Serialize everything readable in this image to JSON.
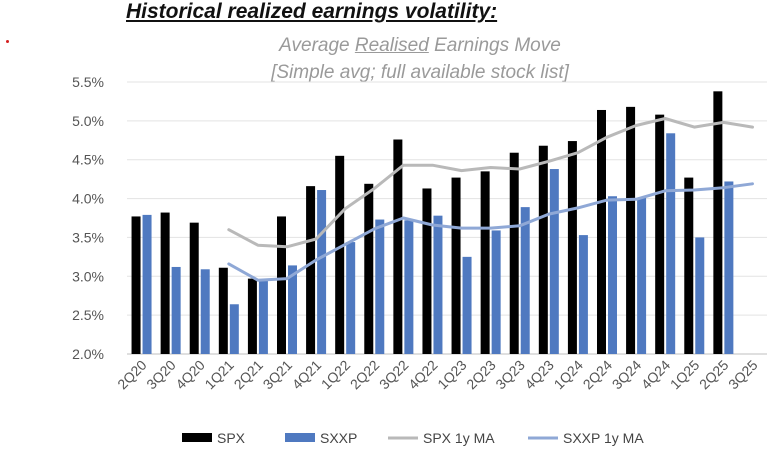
{
  "heading": "Historical realized earnings volatility:",
  "chart_data": {
    "type": "bar",
    "title_line1_pre": "Average ",
    "title_line1_ul": "Realised",
    "title_line1_post": " Earnings Move",
    "title_line2": "[Simple avg; full available stock list]",
    "categories": [
      "2Q20",
      "3Q20",
      "4Q20",
      "1Q21",
      "2Q21",
      "3Q21",
      "4Q21",
      "1Q22",
      "2Q22",
      "3Q22",
      "4Q22",
      "1Q23",
      "2Q23",
      "3Q23",
      "4Q23",
      "1Q24",
      "2Q24",
      "3Q24",
      "4Q24",
      "1Q25",
      "2Q25",
      "3Q25"
    ],
    "ylim": [
      2.0,
      5.5
    ],
    "yticks": [
      2.0,
      2.5,
      3.0,
      3.5,
      4.0,
      4.5,
      5.0,
      5.5
    ],
    "ytick_labels": [
      "2.0%",
      "2.5%",
      "3.0%",
      "3.5%",
      "4.0%",
      "4.5%",
      "5.0%",
      "5.5%"
    ],
    "series": [
      {
        "name": "SPX",
        "kind": "bar",
        "color": "#000000",
        "values": [
          3.77,
          3.82,
          3.69,
          3.11,
          2.97,
          3.77,
          4.16,
          4.55,
          4.19,
          4.76,
          4.13,
          4.27,
          4.35,
          4.59,
          4.68,
          4.74,
          5.14,
          5.18,
          5.08,
          4.27,
          5.38,
          null
        ]
      },
      {
        "name": "SXXP",
        "kind": "bar",
        "color": "#4f79c0",
        "values": [
          3.79,
          3.12,
          3.09,
          2.64,
          2.96,
          3.14,
          4.11,
          3.44,
          3.73,
          3.72,
          3.78,
          3.25,
          3.59,
          3.89,
          4.38,
          3.53,
          4.03,
          4.01,
          4.84,
          3.5,
          4.22,
          null
        ]
      },
      {
        "name": "SPX 1y MA",
        "kind": "line",
        "color": "#b9b9b9",
        "values": [
          null,
          null,
          null,
          3.6,
          3.4,
          3.38,
          3.48,
          3.87,
          4.13,
          4.43,
          4.43,
          4.36,
          4.4,
          4.38,
          4.48,
          4.59,
          4.79,
          4.94,
          5.03,
          4.92,
          4.98,
          4.92
        ]
      },
      {
        "name": "SXXP 1y MA",
        "kind": "line",
        "color": "#8fa8d6",
        "values": [
          null,
          null,
          null,
          3.16,
          2.95,
          2.97,
          3.21,
          3.41,
          3.61,
          3.75,
          3.66,
          3.62,
          3.62,
          3.65,
          3.8,
          3.88,
          3.98,
          3.99,
          4.1,
          4.11,
          4.14,
          4.19
        ]
      }
    ],
    "legend_position": "bottom"
  }
}
